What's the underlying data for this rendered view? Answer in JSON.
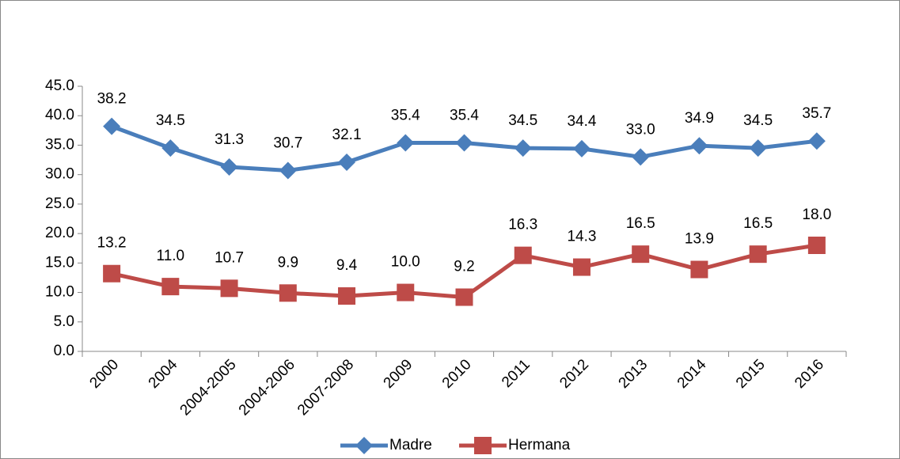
{
  "chart_data": {
    "type": "line",
    "categories": [
      "2000",
      "2004",
      "2004-2005",
      "2004-2006",
      "2007-2008",
      "2009",
      "2010",
      "2011",
      "2012",
      "2013",
      "2014",
      "2015",
      "2016"
    ],
    "series": [
      {
        "name": "Madre",
        "color": "#4a7ebb",
        "marker": "diamond",
        "values": [
          38.2,
          34.5,
          31.3,
          30.7,
          32.1,
          35.4,
          35.4,
          34.5,
          34.4,
          33.0,
          34.9,
          34.5,
          35.7
        ],
        "value_labels": [
          "38.2",
          "34.5",
          "31.3",
          "30.7",
          "32.1",
          "35.4",
          "35.4",
          "34.5",
          "34.4",
          "33.0",
          "34.9",
          "34.5",
          "35.7"
        ]
      },
      {
        "name": "Hermana",
        "color": "#be4b48",
        "marker": "square",
        "values": [
          13.2,
          11.0,
          10.7,
          9.9,
          9.4,
          10.0,
          9.2,
          16.3,
          14.3,
          16.5,
          13.9,
          16.5,
          18.0
        ],
        "value_labels": [
          "13.2",
          "11.0",
          "10.7",
          "9.9",
          "9.4",
          "10.0",
          "9.2",
          "16.3",
          "14.3",
          "16.5",
          "13.9",
          "16.5",
          "18.0"
        ]
      }
    ],
    "ylim": [
      0,
      45
    ],
    "yticks": [
      {
        "value": 0,
        "label": "0.0"
      },
      {
        "value": 5,
        "label": "5.0"
      },
      {
        "value": 10,
        "label": "10.0"
      },
      {
        "value": 15,
        "label": "15.0"
      },
      {
        "value": 20,
        "label": "20.0"
      },
      {
        "value": 25,
        "label": "25.0"
      },
      {
        "value": 30,
        "label": "30.0"
      },
      {
        "value": 35,
        "label": "35.0"
      },
      {
        "value": 40,
        "label": "40.0"
      },
      {
        "value": 45,
        "label": "45.0"
      }
    ],
    "grid": false,
    "legend": "bottom"
  }
}
